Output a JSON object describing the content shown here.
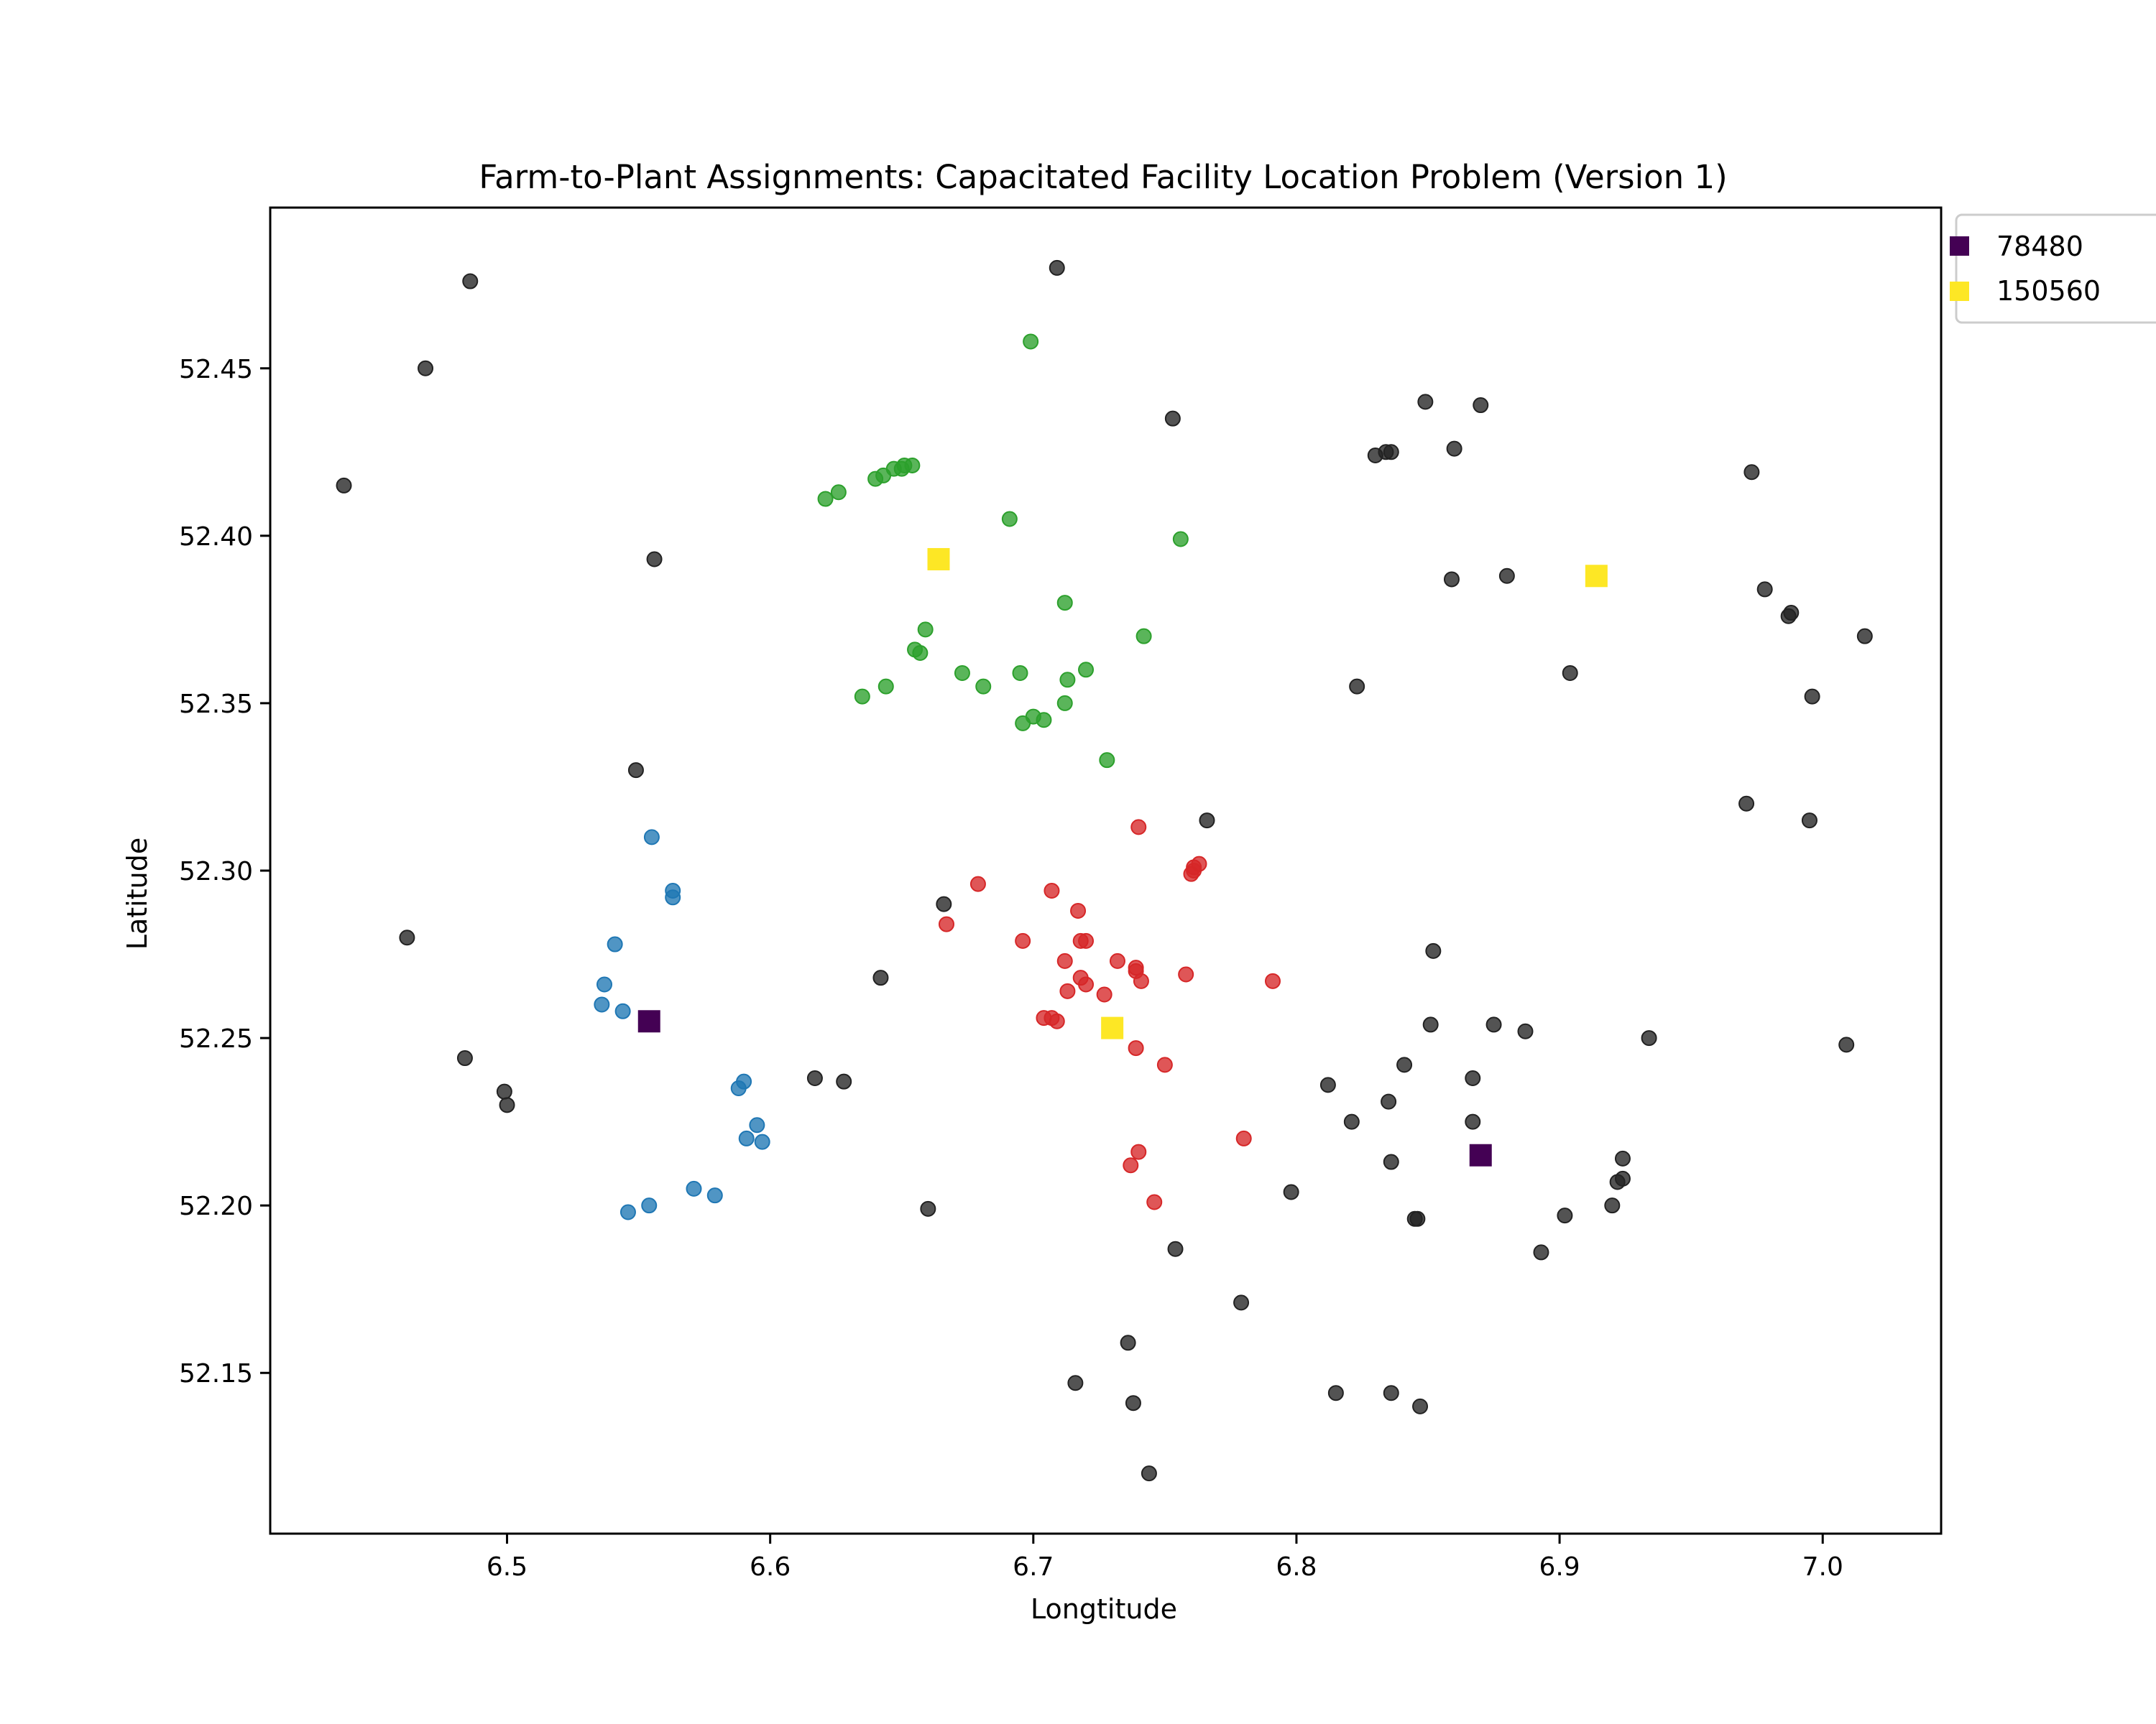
{
  "chart_data": {
    "type": "scatter",
    "title": "Farm-to-Plant Assignments: Capacitated Facility Location Problem (Version 1)",
    "xlabel": "Longtitude",
    "ylabel": "Latitude",
    "xlim": [
      6.41,
      7.045
    ],
    "ylim": [
      52.102,
      52.498
    ],
    "xticks": [
      6.5,
      6.6,
      6.7,
      6.8,
      6.9,
      7.0
    ],
    "xtick_labels": [
      "6.5",
      "6.6",
      "6.7",
      "6.8",
      "6.9",
      "7.0"
    ],
    "yticks": [
      52.15,
      52.2,
      52.25,
      52.3,
      52.35,
      52.4,
      52.45
    ],
    "ytick_labels": [
      "52.15",
      "52.20",
      "52.25",
      "52.30",
      "52.35",
      "52.40",
      "52.45"
    ],
    "grid": false,
    "legend_placement": "outside-top-right",
    "legend": [
      {
        "label": "78480",
        "color": "#440154",
        "marker": "square"
      },
      {
        "label": "150560",
        "color": "#fde725",
        "marker": "square"
      }
    ],
    "plants": [
      {
        "capacity": "78480",
        "color": "#440154",
        "x": 6.554,
        "y": 52.255
      },
      {
        "capacity": "78480",
        "color": "#440154",
        "x": 6.87,
        "y": 52.215
      },
      {
        "capacity": "150560",
        "color": "#fde725",
        "x": 6.664,
        "y": 52.393
      },
      {
        "capacity": "150560",
        "color": "#fde725",
        "x": 6.914,
        "y": 52.388
      },
      {
        "capacity": "150560",
        "color": "#fde725",
        "x": 6.73,
        "y": 52.253
      }
    ],
    "series": [
      {
        "color": "#2ca02c",
        "points": [
          [
            6.699,
            52.458
          ],
          [
            6.621,
            52.411
          ],
          [
            6.626,
            52.413
          ],
          [
            6.64,
            52.417
          ],
          [
            6.643,
            52.418
          ],
          [
            6.647,
            52.42
          ],
          [
            6.65,
            52.42
          ],
          [
            6.651,
            52.421
          ],
          [
            6.654,
            52.421
          ],
          [
            6.691,
            52.405
          ],
          [
            6.756,
            52.399
          ],
          [
            6.712,
            52.38
          ],
          [
            6.659,
            52.372
          ],
          [
            6.742,
            52.37
          ],
          [
            6.655,
            52.366
          ],
          [
            6.657,
            52.365
          ],
          [
            6.673,
            52.359
          ],
          [
            6.695,
            52.359
          ],
          [
            6.713,
            52.357
          ],
          [
            6.72,
            52.36
          ],
          [
            6.644,
            52.355
          ],
          [
            6.681,
            52.355
          ],
          [
            6.635,
            52.352
          ],
          [
            6.712,
            52.35
          ],
          [
            6.7,
            52.346
          ],
          [
            6.704,
            52.345
          ],
          [
            6.696,
            52.344
          ],
          [
            6.728,
            52.333
          ]
        ]
      },
      {
        "color": "#1f77b4",
        "points": [
          [
            6.555,
            52.31
          ],
          [
            6.563,
            52.294
          ],
          [
            6.563,
            52.292
          ],
          [
            6.541,
            52.278
          ],
          [
            6.537,
            52.266
          ],
          [
            6.536,
            52.26
          ],
          [
            6.544,
            52.258
          ],
          [
            6.59,
            52.237
          ],
          [
            6.588,
            52.235
          ],
          [
            6.595,
            52.224
          ],
          [
            6.591,
            52.22
          ],
          [
            6.597,
            52.219
          ],
          [
            6.571,
            52.205
          ],
          [
            6.579,
            52.203
          ],
          [
            6.554,
            52.2
          ],
          [
            6.546,
            52.198
          ]
        ]
      },
      {
        "color": "#d62728",
        "points": [
          [
            6.74,
            52.313
          ],
          [
            6.761,
            52.301
          ],
          [
            6.763,
            52.302
          ],
          [
            6.76,
            52.299
          ],
          [
            6.761,
            52.3
          ],
          [
            6.679,
            52.296
          ],
          [
            6.707,
            52.294
          ],
          [
            6.717,
            52.288
          ],
          [
            6.667,
            52.284
          ],
          [
            6.696,
            52.279
          ],
          [
            6.718,
            52.279
          ],
          [
            6.72,
            52.279
          ],
          [
            6.712,
            52.273
          ],
          [
            6.732,
            52.273
          ],
          [
            6.739,
            52.271
          ],
          [
            6.739,
            52.27
          ],
          [
            6.758,
            52.269
          ],
          [
            6.718,
            52.268
          ],
          [
            6.741,
            52.267
          ],
          [
            6.791,
            52.267
          ],
          [
            6.72,
            52.266
          ],
          [
            6.713,
            52.264
          ],
          [
            6.727,
            52.263
          ],
          [
            6.704,
            52.256
          ],
          [
            6.707,
            52.256
          ],
          [
            6.709,
            52.255
          ],
          [
            6.739,
            52.247
          ],
          [
            6.75,
            52.242
          ],
          [
            6.78,
            52.22
          ],
          [
            6.74,
            52.216
          ],
          [
            6.737,
            52.212
          ],
          [
            6.746,
            52.201
          ]
        ]
      },
      {
        "color": "#222222",
        "points": [
          [
            6.709,
            52.48
          ],
          [
            6.486,
            52.476
          ],
          [
            6.469,
            52.45
          ],
          [
            6.438,
            52.415
          ],
          [
            6.556,
            52.393
          ],
          [
            6.753,
            52.435
          ],
          [
            6.849,
            52.44
          ],
          [
            6.87,
            52.439
          ],
          [
            6.86,
            52.426
          ],
          [
            6.836,
            52.425
          ],
          [
            6.834,
            52.425
          ],
          [
            6.83,
            52.424
          ],
          [
            6.973,
            52.419
          ],
          [
            6.859,
            52.387
          ],
          [
            6.88,
            52.388
          ],
          [
            6.978,
            52.384
          ],
          [
            6.988,
            52.377
          ],
          [
            6.987,
            52.376
          ],
          [
            7.016,
            52.37
          ],
          [
            6.904,
            52.359
          ],
          [
            6.823,
            52.355
          ],
          [
            6.996,
            52.352
          ],
          [
            6.549,
            52.33
          ],
          [
            6.971,
            52.32
          ],
          [
            6.995,
            52.315
          ],
          [
            6.766,
            52.315
          ],
          [
            6.666,
            52.29
          ],
          [
            6.462,
            52.28
          ],
          [
            6.852,
            52.276
          ],
          [
            6.642,
            52.268
          ],
          [
            6.851,
            52.254
          ],
          [
            6.875,
            52.254
          ],
          [
            6.887,
            52.252
          ],
          [
            6.934,
            52.25
          ],
          [
            7.009,
            52.248
          ],
          [
            6.484,
            52.244
          ],
          [
            6.841,
            52.242
          ],
          [
            6.867,
            52.238
          ],
          [
            6.617,
            52.238
          ],
          [
            6.628,
            52.237
          ],
          [
            6.812,
            52.236
          ],
          [
            6.499,
            52.234
          ],
          [
            6.5,
            52.23
          ],
          [
            6.835,
            52.231
          ],
          [
            6.821,
            52.225
          ],
          [
            6.867,
            52.225
          ],
          [
            6.924,
            52.214
          ],
          [
            6.836,
            52.213
          ],
          [
            6.924,
            52.208
          ],
          [
            6.922,
            52.207
          ],
          [
            6.798,
            52.204
          ],
          [
            6.92,
            52.2
          ],
          [
            6.66,
            52.199
          ],
          [
            6.902,
            52.197
          ],
          [
            6.845,
            52.196
          ],
          [
            6.846,
            52.196
          ],
          [
            6.754,
            52.187
          ],
          [
            6.893,
            52.186
          ],
          [
            6.779,
            52.171
          ],
          [
            6.736,
            52.159
          ],
          [
            6.716,
            52.147
          ],
          [
            6.815,
            52.144
          ],
          [
            6.836,
            52.144
          ],
          [
            6.738,
            52.141
          ],
          [
            6.847,
            52.14
          ],
          [
            6.744,
            52.12
          ]
        ]
      }
    ]
  }
}
